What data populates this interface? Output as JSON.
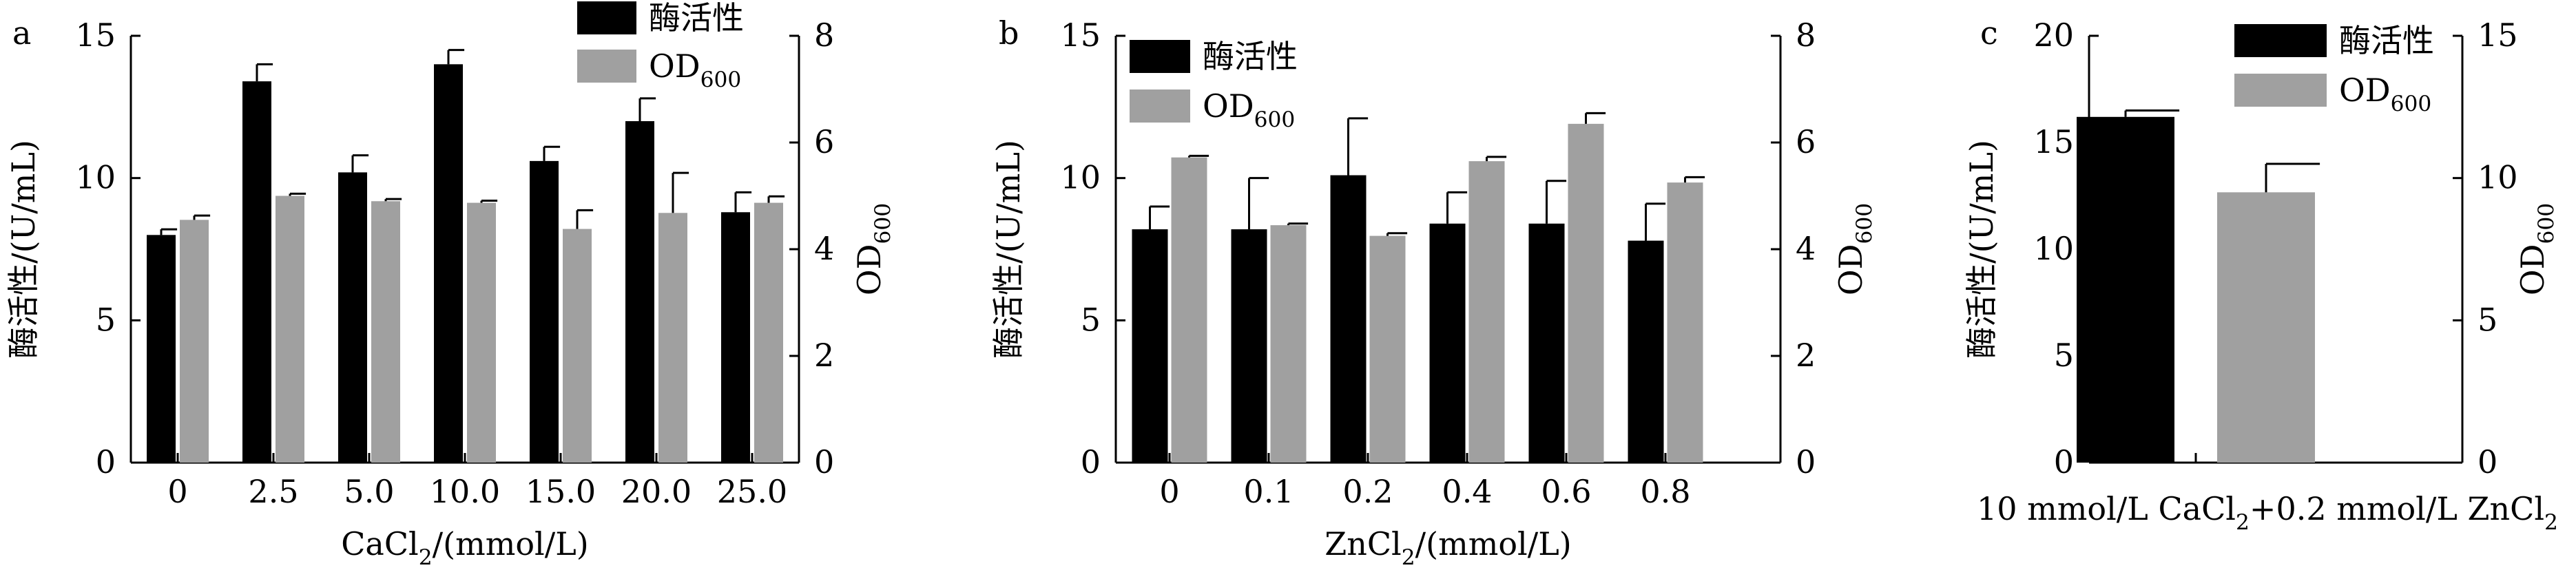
{
  "chart_data": [
    {
      "panel": "a",
      "type": "bar",
      "categories": [
        "0",
        "2.5",
        "5.0",
        "10.0",
        "15.0",
        "20.0",
        "25.0"
      ],
      "xlabel_main": "CaCl",
      "xlabel_sub": "2",
      "xlabel_tail": "/(mmol/L)",
      "ylabel_left": "酶活性/(U/mL)",
      "ylabel_right_main": "OD",
      "ylabel_right_sub": "600",
      "ylim_left": [
        0,
        15
      ],
      "yticks_left": [
        "0",
        "5",
        "10",
        "15"
      ],
      "ylim_right": [
        0,
        8
      ],
      "yticks_right": [
        "0",
        "2",
        "4",
        "6",
        "8"
      ],
      "legend_position": "top-right",
      "series": [
        {
          "name": "酶活性",
          "name_sub": "",
          "axis": "left",
          "color": "#000000",
          "values": [
            8.0,
            13.4,
            10.2,
            14.0,
            10.6,
            12.0,
            8.8
          ],
          "errors": [
            0.2,
            0.6,
            0.6,
            0.5,
            0.5,
            0.8,
            0.7
          ]
        },
        {
          "name": "OD",
          "name_sub": "600",
          "axis": "right",
          "color": "#a0a0a0",
          "values": [
            4.55,
            5.0,
            4.9,
            4.87,
            4.38,
            4.68,
            4.87
          ],
          "errors": [
            0.08,
            0.04,
            0.04,
            0.04,
            0.35,
            0.75,
            0.12
          ]
        }
      ]
    },
    {
      "panel": "b",
      "type": "bar",
      "categories": [
        "0",
        "0.1",
        "0.2",
        "0.4",
        "0.6",
        "0.8"
      ],
      "xlabel_main": "ZnCl",
      "xlabel_sub": "2",
      "xlabel_tail": "/(mmol/L)",
      "ylabel_left": "酶活性/(U/mL)",
      "ylabel_right_main": "OD",
      "ylabel_right_sub": "600",
      "ylim_left": [
        0,
        15
      ],
      "yticks_left": [
        "0",
        "5",
        "10",
        "15"
      ],
      "ylim_right": [
        0,
        8
      ],
      "yticks_right": [
        "0",
        "2",
        "4",
        "6",
        "8"
      ],
      "legend_position": "top-left",
      "series": [
        {
          "name": "酶活性",
          "name_sub": "",
          "axis": "left",
          "color": "#000000",
          "values": [
            8.2,
            8.2,
            10.1,
            8.4,
            8.4,
            7.8
          ],
          "errors": [
            0.8,
            1.8,
            2.0,
            1.1,
            1.5,
            1.3
          ]
        },
        {
          "name": "OD",
          "name_sub": "600",
          "axis": "right",
          "color": "#a0a0a0",
          "values": [
            5.72,
            4.45,
            4.25,
            5.65,
            6.35,
            5.25
          ],
          "errors": [
            0.03,
            0.03,
            0.05,
            0.08,
            0.2,
            0.1
          ]
        }
      ]
    },
    {
      "panel": "c",
      "type": "bar",
      "categories": [
        ""
      ],
      "xlabel_main": "10 mmol/L CaCl",
      "xlabel_sub": "2",
      "xlabel_tail": "+0.2 mmol/L ZnCl",
      "xlabel_sub2": "2",
      "ylabel_left": "酶活性/(U/mL)",
      "ylabel_right_main": "OD",
      "ylabel_right_sub": "600",
      "ylim_left": [
        0,
        20
      ],
      "yticks_left": [
        "0",
        "5",
        "10",
        "15",
        "20"
      ],
      "ylim_right": [
        0,
        15
      ],
      "yticks_right": [
        "0",
        "5",
        "10",
        "15"
      ],
      "legend_position": "top-right",
      "series": [
        {
          "name": "酶活性",
          "name_sub": "",
          "axis": "left",
          "color": "#000000",
          "values": [
            16.2
          ],
          "errors": [
            0.3
          ]
        },
        {
          "name": "OD",
          "name_sub": "600",
          "axis": "right",
          "color": "#a0a0a0",
          "values": [
            9.5
          ],
          "errors": [
            1.0
          ]
        }
      ]
    }
  ]
}
